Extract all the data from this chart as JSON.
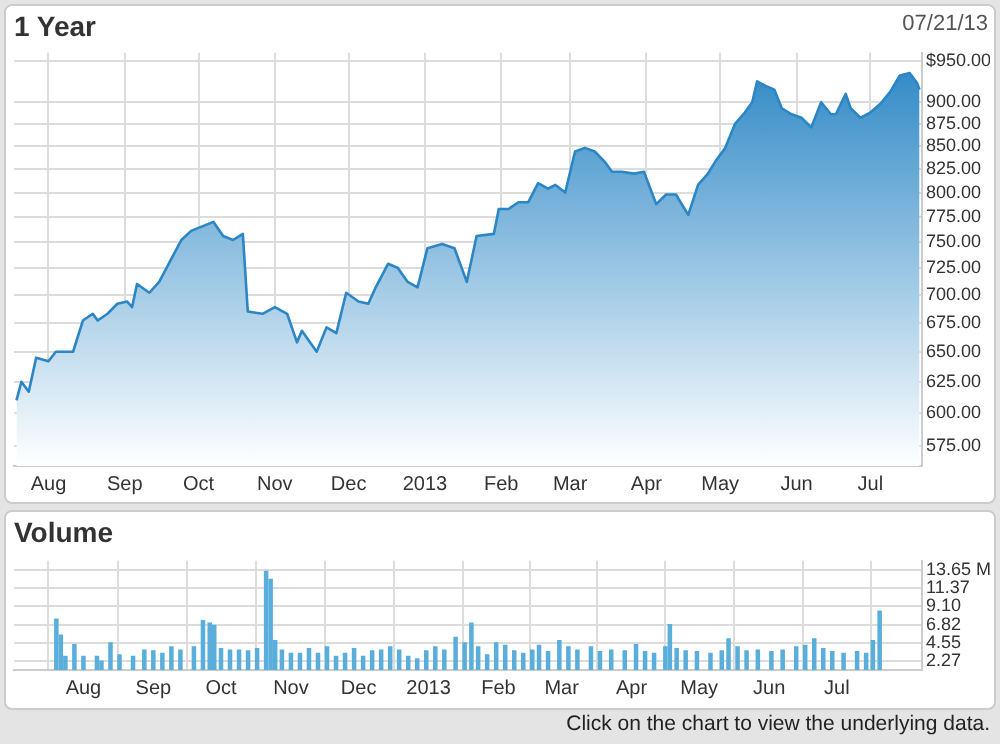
{
  "chart_data": [
    {
      "type": "area",
      "title": "1 Year",
      "annotations": [
        "07/21/13"
      ],
      "log": "y",
      "grid": true,
      "marker": "none",
      "x": [
        "2012-07-19",
        "2012-07-21",
        "2012-07-24",
        "2012-07-27",
        "2012-08-01",
        "2012-08-04",
        "2012-08-11",
        "2012-08-15",
        "2012-08-19",
        "2012-08-21",
        "2012-08-25",
        "2012-08-29",
        "2012-09-02",
        "2012-09-04",
        "2012-09-06",
        "2012-09-11",
        "2012-09-15",
        "2012-09-20",
        "2012-09-24",
        "2012-09-28",
        "2012-10-02",
        "2012-10-07",
        "2012-10-11",
        "2012-10-15",
        "2012-10-19",
        "2012-10-21",
        "2012-10-27",
        "2012-11-01",
        "2012-11-06",
        "2012-11-10",
        "2012-11-12",
        "2012-11-18",
        "2012-11-22",
        "2012-11-26",
        "2012-11-30",
        "2012-12-05",
        "2012-12-09",
        "2012-12-12",
        "2012-12-17",
        "2012-12-21",
        "2012-12-25",
        "2012-12-29",
        "2013-01-02",
        "2013-01-08",
        "2013-01-13",
        "2013-01-18",
        "2013-01-22",
        "2013-01-29",
        "2013-01-31",
        "2013-02-04",
        "2013-02-08",
        "2013-02-12",
        "2013-02-16",
        "2013-02-20",
        "2013-02-23",
        "2013-02-27",
        "2013-03-03",
        "2013-03-07",
        "2013-03-11",
        "2013-03-15",
        "2013-03-18",
        "2013-03-22",
        "2013-03-27",
        "2013-03-31",
        "2013-04-05",
        "2013-04-09",
        "2013-04-13",
        "2013-04-18",
        "2013-04-22",
        "2013-04-26",
        "2013-04-29",
        "2013-05-03",
        "2013-05-07",
        "2013-05-11",
        "2013-05-14",
        "2013-05-16",
        "2013-05-19",
        "2013-05-23",
        "2013-05-26",
        "2013-05-30",
        "2013-06-03",
        "2013-06-07",
        "2013-06-11",
        "2013-06-15",
        "2013-06-17",
        "2013-06-21",
        "2013-06-23",
        "2013-06-27",
        "2013-07-01",
        "2013-07-05",
        "2013-07-09",
        "2013-07-13",
        "2013-07-17",
        "2013-07-20",
        "2013-07-21"
      ],
      "series": [
        {
          "color": "#2a86c4",
          "values": [
            610,
            625,
            617,
            645,
            642,
            650,
            650,
            677,
            683,
            677,
            683,
            692,
            694,
            689,
            710,
            702,
            712,
            734,
            752,
            761,
            765,
            770,
            756,
            752,
            758,
            685,
            683,
            689,
            683,
            658,
            668,
            650,
            671,
            666,
            702,
            694,
            692,
            707,
            729,
            725,
            712,
            707,
            744,
            748,
            744,
            712,
            756,
            758,
            783,
            783,
            790,
            790,
            810,
            804,
            808,
            800,
            844,
            848,
            844,
            833,
            822,
            822,
            820,
            822,
            788,
            798,
            798,
            777,
            808,
            820,
            833,
            848,
            875,
            888,
            900,
            925,
            920,
            915,
            893,
            886,
            882,
            871,
            900,
            886,
            886,
            910,
            893,
            882,
            888,
            898,
            912,
            932,
            935,
            923,
            915
          ]
        }
      ],
      "xlim": [
        "2012-07-18",
        "2013-07-22"
      ],
      "xticks": [
        {
          "value": "2012-08-01",
          "label": "Aug"
        },
        {
          "value": "2012-09-01",
          "label": "Sep"
        },
        {
          "value": "2012-10-01",
          "label": "Oct"
        },
        {
          "value": "2012-11-01",
          "label": "Nov"
        },
        {
          "value": "2012-12-01",
          "label": "Dec"
        },
        {
          "value": "2013-01-01",
          "label": "2013"
        },
        {
          "value": "2013-02-01",
          "label": "Feb"
        },
        {
          "value": "2013-03-01",
          "label": "Mar"
        },
        {
          "value": "2013-04-01",
          "label": "Apr"
        },
        {
          "value": "2013-05-01",
          "label": "May"
        },
        {
          "value": "2013-06-01",
          "label": "Jun"
        },
        {
          "value": "2013-07-01",
          "label": "Jul"
        }
      ],
      "ylim": [
        560,
        960
      ],
      "yticks": [
        {
          "value": 575,
          "label": "575.00"
        },
        {
          "value": 600,
          "label": "600.00"
        },
        {
          "value": 625,
          "label": "625.00"
        },
        {
          "value": 650,
          "label": "650.00"
        },
        {
          "value": 675,
          "label": "675.00"
        },
        {
          "value": 700,
          "label": "700.00"
        },
        {
          "value": 725,
          "label": "725.00"
        },
        {
          "value": 750,
          "label": "750.00"
        },
        {
          "value": 775,
          "label": "775.00"
        },
        {
          "value": 800,
          "label": "800.00"
        },
        {
          "value": 825,
          "label": "825.00"
        },
        {
          "value": 850,
          "label": "850.00"
        },
        {
          "value": 875,
          "label": "875.00"
        },
        {
          "value": 900,
          "label": "900.00"
        },
        {
          "value": 950,
          "label": "$950.00"
        }
      ]
    },
    {
      "type": "bar",
      "title": "Volume",
      "annotations": [
        "Click on the chart to view the underlying data."
      ],
      "grid": true,
      "x": [
        "2012-07-20",
        "2012-07-22",
        "2012-07-24",
        "2012-07-28",
        "2012-08-01",
        "2012-08-07",
        "2012-08-09",
        "2012-08-13",
        "2012-08-17",
        "2012-08-23",
        "2012-08-28",
        "2012-09-01",
        "2012-09-05",
        "2012-09-09",
        "2012-09-13",
        "2012-09-19",
        "2012-09-23",
        "2012-09-26",
        "2012-09-28",
        "2012-10-01",
        "2012-10-05",
        "2012-10-09",
        "2012-10-13",
        "2012-10-17",
        "2012-10-21",
        "2012-10-23",
        "2012-10-25",
        "2012-10-28",
        "2012-11-01",
        "2012-11-05",
        "2012-11-09",
        "2012-11-13",
        "2012-11-17",
        "2012-11-21",
        "2012-11-25",
        "2012-11-29",
        "2012-12-03",
        "2012-12-07",
        "2012-12-11",
        "2012-12-15",
        "2012-12-19",
        "2012-12-23",
        "2012-12-27",
        "2012-12-31",
        "2013-01-04",
        "2013-01-08",
        "2013-01-13",
        "2013-01-17",
        "2013-01-20",
        "2013-01-23",
        "2013-01-27",
        "2013-01-31",
        "2013-02-04",
        "2013-02-08",
        "2013-02-12",
        "2013-02-16",
        "2013-02-19",
        "2013-02-23",
        "2013-02-28",
        "2013-03-04",
        "2013-03-08",
        "2013-03-14",
        "2013-03-18",
        "2013-03-23",
        "2013-03-29",
        "2013-04-03",
        "2013-04-07",
        "2013-04-11",
        "2013-04-16",
        "2013-04-18",
        "2013-04-21",
        "2013-04-25",
        "2013-04-30",
        "2013-05-06",
        "2013-05-11",
        "2013-05-14",
        "2013-05-18",
        "2013-05-22",
        "2013-05-27",
        "2013-06-02",
        "2013-06-07",
        "2013-06-13",
        "2013-06-17",
        "2013-06-21",
        "2013-06-25",
        "2013-06-29",
        "2013-07-04",
        "2013-07-10",
        "2013-07-14",
        "2013-07-17",
        "2013-07-20"
      ],
      "series": [
        {
          "color": "#5aaedb",
          "values": [
            7.5,
            5.5,
            2.8,
            4.3,
            2.8,
            2.8,
            2.2,
            4.5,
            3.0,
            2.8,
            3.6,
            3.5,
            3.2,
            4.0,
            3.6,
            4.0,
            7.3,
            7.0,
            6.7,
            3.8,
            3.6,
            3.6,
            3.5,
            3.8,
            13.5,
            12.5,
            4.8,
            3.6,
            3.2,
            3.2,
            3.8,
            3.2,
            4.0,
            2.8,
            3.2,
            3.8,
            2.8,
            3.5,
            3.6,
            4.0,
            3.6,
            2.8,
            2.5,
            3.5,
            4.0,
            3.6,
            5.2,
            4.5,
            7.0,
            4.0,
            3.0,
            4.5,
            4.2,
            3.5,
            3.2,
            3.6,
            4.2,
            3.4,
            4.8,
            4.0,
            3.6,
            4.0,
            3.4,
            3.6,
            3.5,
            4.3,
            3.4,
            3.2,
            4.0,
            6.8,
            3.8,
            3.5,
            3.4,
            3.2,
            3.5,
            5.0,
            4.0,
            3.5,
            3.6,
            3.4,
            3.6,
            4.0,
            4.2,
            5.0,
            3.8,
            3.4,
            3.2,
            3.4,
            3.2,
            4.8,
            8.5
          ]
        }
      ],
      "xlim": [
        "2012-07-18",
        "2013-07-22"
      ],
      "xticks": [
        {
          "value": "2012-08-01",
          "label": "Aug"
        },
        {
          "value": "2012-09-01",
          "label": "Sep"
        },
        {
          "value": "2012-10-01",
          "label": "Oct"
        },
        {
          "value": "2012-11-01",
          "label": "Nov"
        },
        {
          "value": "2012-12-01",
          "label": "Dec"
        },
        {
          "value": "2013-01-01",
          "label": "2013"
        },
        {
          "value": "2013-02-01",
          "label": "Feb"
        },
        {
          "value": "2013-03-01",
          "label": "Mar"
        },
        {
          "value": "2013-04-01",
          "label": "Apr"
        },
        {
          "value": "2013-05-01",
          "label": "May"
        },
        {
          "value": "2013-06-01",
          "label": "Jun"
        },
        {
          "value": "2013-07-01",
          "label": "Jul"
        }
      ],
      "ylim": [
        1.1,
        14.85
      ],
      "yticks": [
        {
          "value": 2.27,
          "label": "2.27"
        },
        {
          "value": 4.55,
          "label": "4.55"
        },
        {
          "value": 6.82,
          "label": "6.82"
        },
        {
          "value": 9.1,
          "label": "9.10"
        },
        {
          "value": 11.37,
          "label": "11.37"
        },
        {
          "value": 13.65,
          "label": "13.65 M"
        }
      ]
    }
  ]
}
